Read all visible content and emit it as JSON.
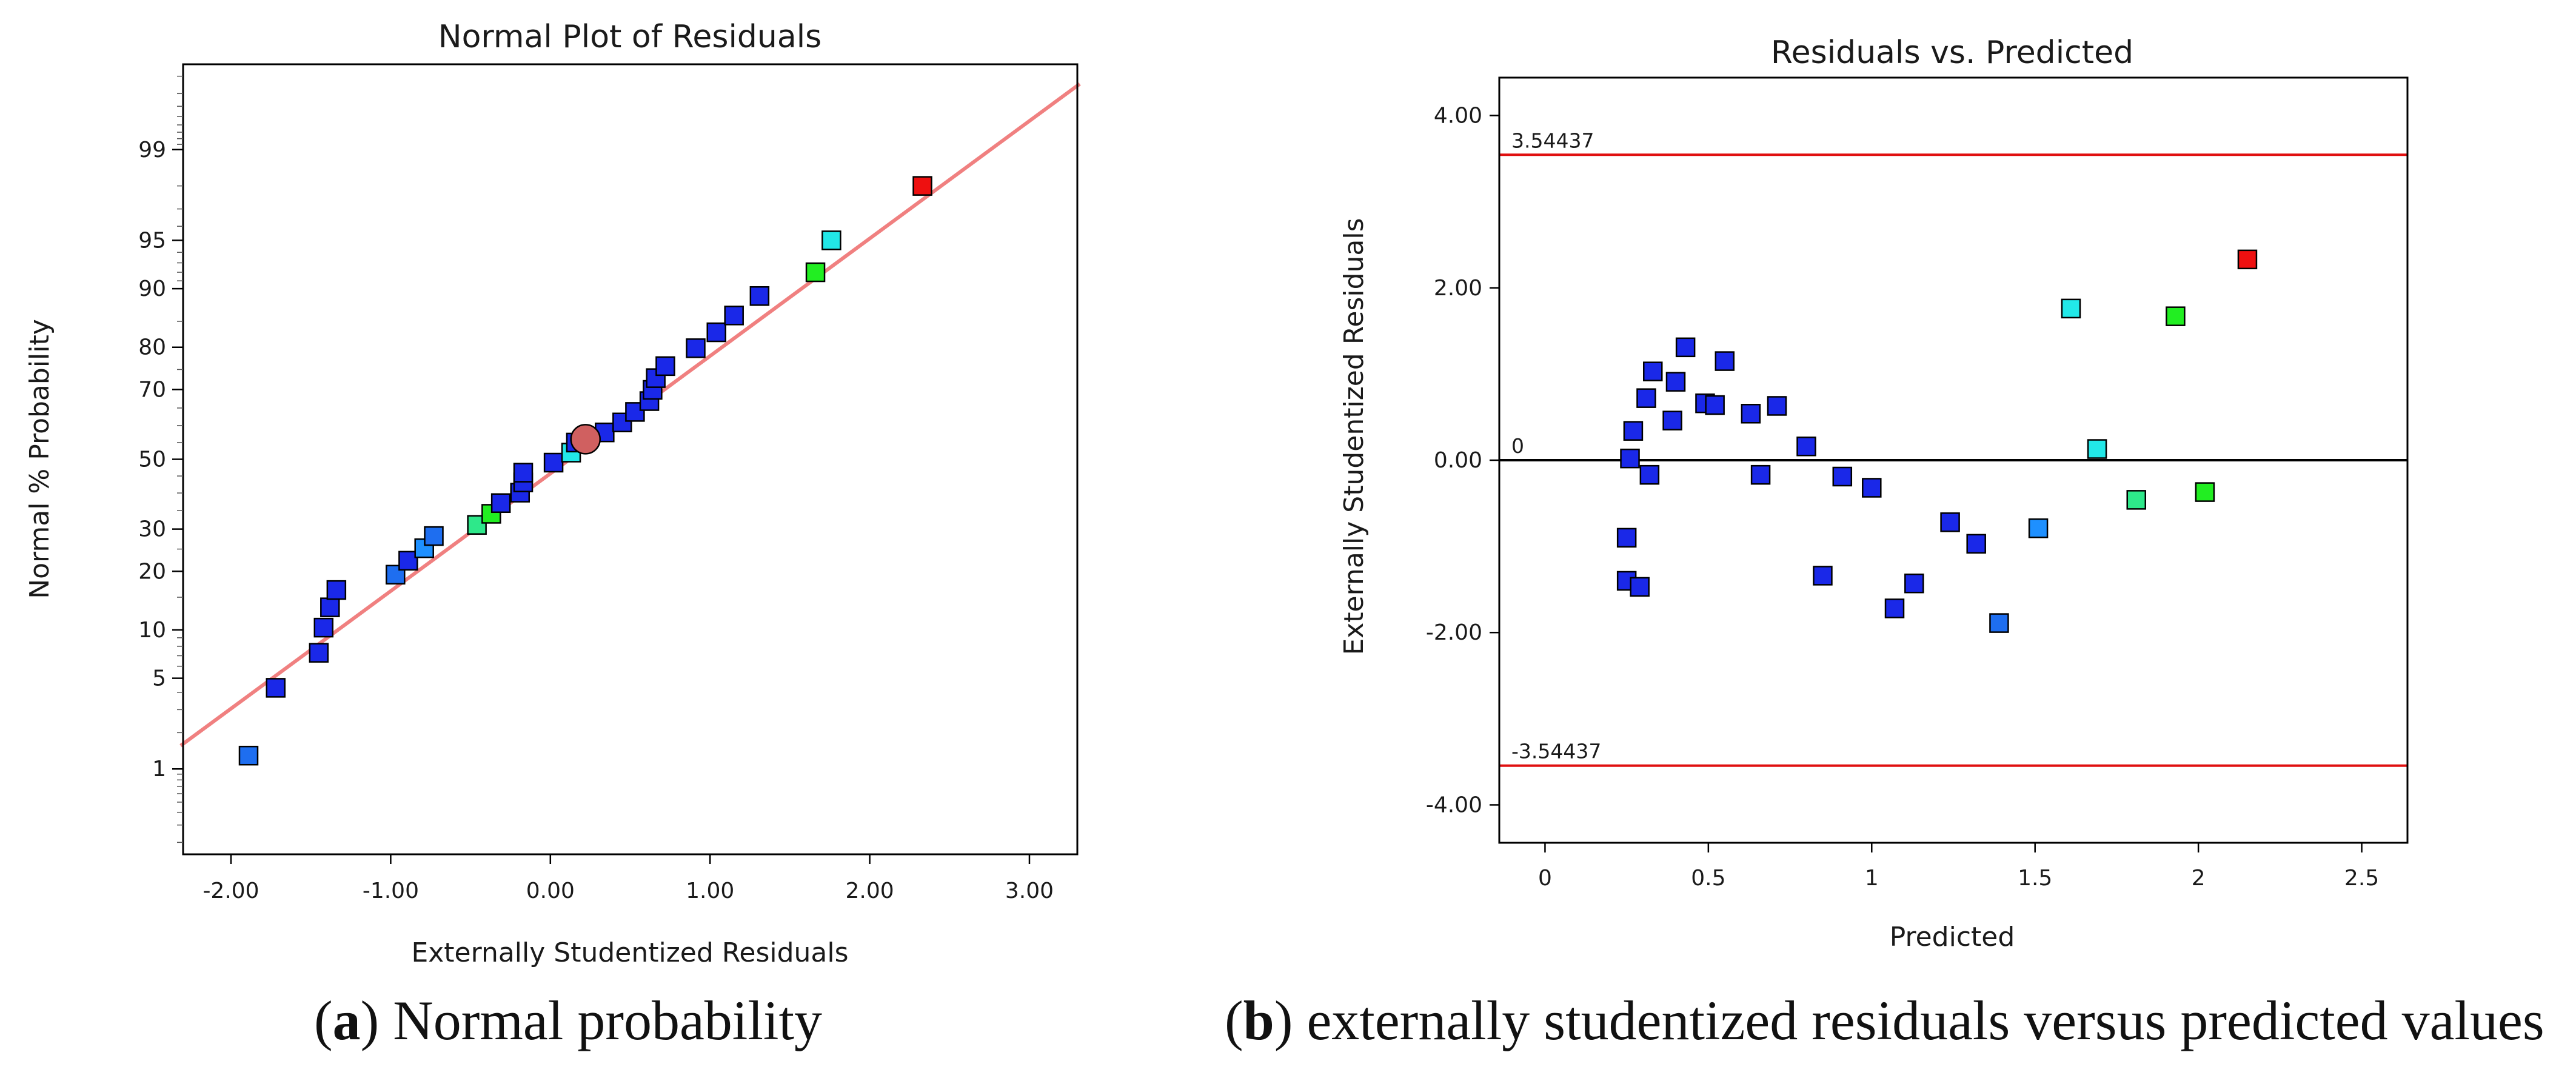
{
  "captions": {
    "a": {
      "letter": "a",
      "text": "Normal probability"
    },
    "b": {
      "letter": "b",
      "text": "externally studentized residuals versus predicted values"
    }
  },
  "colors": {
    "fit_line": "#f08080",
    "ref_line": "#e01010",
    "zero_line": "#000000",
    "frame": "#000000"
  },
  "chart_data": [
    {
      "type": "scatter",
      "title": "Normal Plot of Residuals",
      "xlabel": "Externally Studentized Residuals",
      "ylabel": "Normal % Probability",
      "xlim": [
        -2.3,
        3.3
      ],
      "xticks": [
        -2,
        -1,
        0,
        1,
        2,
        3
      ],
      "xtick_labels": [
        "-2.00",
        "-1.00",
        "0.00",
        "1.00",
        "2.00",
        "3.00"
      ],
      "ylim_probability": [
        0.15,
        99.85
      ],
      "yticks": [
        1,
        5,
        10,
        20,
        30,
        50,
        70,
        80,
        90,
        95,
        99
      ],
      "ytick_labels": [
        "1",
        "5",
        "10",
        "20",
        "30",
        "50",
        "70",
        "80",
        "90",
        "95",
        "99"
      ],
      "fit_line": {
        "x": [
          -2.3,
          3.3
        ],
        "y": [
          1.76,
          99.76
        ]
      },
      "highlight_point": {
        "x": 0.22,
        "y": 56,
        "color": "#d06060"
      },
      "points": [
        {
          "x": -1.89,
          "y": 1.3,
          "color": "#1e6ef0"
        },
        {
          "x": -1.72,
          "y": 4.3,
          "color": "#1a28e8"
        },
        {
          "x": -1.45,
          "y": 7.3,
          "color": "#1a28e8"
        },
        {
          "x": -1.42,
          "y": 10.3,
          "color": "#1a28e8"
        },
        {
          "x": -1.38,
          "y": 13.3,
          "color": "#1a28e8"
        },
        {
          "x": -1.34,
          "y": 16.3,
          "color": "#1a28e8"
        },
        {
          "x": -0.97,
          "y": 19.3,
          "color": "#1e6ef0"
        },
        {
          "x": -0.89,
          "y": 22.3,
          "color": "#1a28e8"
        },
        {
          "x": -0.79,
          "y": 25.2,
          "color": "#1e90ff"
        },
        {
          "x": -0.73,
          "y": 28.2,
          "color": "#1e6ef0"
        },
        {
          "x": -0.46,
          "y": 31.1,
          "color": "#2ee88a"
        },
        {
          "x": -0.37,
          "y": 34.1,
          "color": "#22ee22"
        },
        {
          "x": -0.31,
          "y": 37.1,
          "color": "#1a28e8"
        },
        {
          "x": -0.19,
          "y": 40.1,
          "color": "#1a28e8"
        },
        {
          "x": -0.17,
          "y": 43.1,
          "color": "#1a28e8"
        },
        {
          "x": -0.17,
          "y": 46.0,
          "color": "#1a28e8"
        },
        {
          "x": 0.02,
          "y": 49.0,
          "color": "#1a28e8"
        },
        {
          "x": 0.13,
          "y": 52.0,
          "color": "#22e8e8"
        },
        {
          "x": 0.16,
          "y": 55.0,
          "color": "#1a28e8"
        },
        {
          "x": 0.34,
          "y": 58.0,
          "color": "#1a28e8"
        },
        {
          "x": 0.45,
          "y": 60.9,
          "color": "#1a28e8"
        },
        {
          "x": 0.53,
          "y": 63.9,
          "color": "#1a28e8"
        },
        {
          "x": 0.62,
          "y": 66.9,
          "color": "#1a28e8"
        },
        {
          "x": 0.64,
          "y": 69.9,
          "color": "#1a28e8"
        },
        {
          "x": 0.66,
          "y": 72.9,
          "color": "#1a28e8"
        },
        {
          "x": 0.72,
          "y": 75.8,
          "color": "#1a28e8"
        },
        {
          "x": 0.91,
          "y": 79.8,
          "color": "#1a28e8"
        },
        {
          "x": 1.04,
          "y": 83.0,
          "color": "#1a28e8"
        },
        {
          "x": 1.15,
          "y": 86.0,
          "color": "#1a28e8"
        },
        {
          "x": 1.31,
          "y": 89.0,
          "color": "#1a28e8"
        },
        {
          "x": 1.66,
          "y": 92.0,
          "color": "#22ee22"
        },
        {
          "x": 1.76,
          "y": 95.0,
          "color": "#22e8e8"
        },
        {
          "x": 2.33,
          "y": 98.0,
          "color": "#ee1010"
        }
      ]
    },
    {
      "type": "scatter",
      "title": "Residuals vs. Predicted",
      "xlabel": "Predicted",
      "ylabel": "Externally Studentized Residuals",
      "xlim": [
        -0.14,
        2.64
      ],
      "xticks": [
        0,
        0.5,
        1,
        1.5,
        2,
        2.5
      ],
      "xtick_labels": [
        "0",
        "0.5",
        "1",
        "1.5",
        "2",
        "2.5"
      ],
      "ylim": [
        -4.44,
        4.44
      ],
      "yticks": [
        4,
        2,
        0,
        -2,
        -4
      ],
      "ytick_labels": [
        "4.00",
        "2.00",
        "0.00",
        "-2.00",
        "-4.00"
      ],
      "reference_lines": [
        {
          "y": 3.54437,
          "label": "3.54437",
          "color": "#e01010"
        },
        {
          "y": 0,
          "label": "0",
          "color": "#000000"
        },
        {
          "y": -3.54437,
          "label": "-3.54437",
          "color": "#e01010"
        }
      ],
      "points": [
        {
          "x": 0.25,
          "y": -0.9,
          "color": "#1a28e8"
        },
        {
          "x": 0.25,
          "y": -1.4,
          "color": "#1a28e8"
        },
        {
          "x": 0.26,
          "y": 0.02,
          "color": "#1a28e8"
        },
        {
          "x": 0.27,
          "y": 0.34,
          "color": "#1a28e8"
        },
        {
          "x": 0.29,
          "y": -1.47,
          "color": "#1a28e8"
        },
        {
          "x": 0.31,
          "y": 0.72,
          "color": "#1a28e8"
        },
        {
          "x": 0.32,
          "y": -0.17,
          "color": "#1a28e8"
        },
        {
          "x": 0.33,
          "y": 1.03,
          "color": "#1a28e8"
        },
        {
          "x": 0.39,
          "y": 0.46,
          "color": "#1a28e8"
        },
        {
          "x": 0.4,
          "y": 0.91,
          "color": "#1a28e8"
        },
        {
          "x": 0.43,
          "y": 1.31,
          "color": "#1a28e8"
        },
        {
          "x": 0.49,
          "y": 0.66,
          "color": "#1a28e8"
        },
        {
          "x": 0.52,
          "y": 0.64,
          "color": "#1a28e8"
        },
        {
          "x": 0.55,
          "y": 1.15,
          "color": "#1a28e8"
        },
        {
          "x": 0.63,
          "y": 0.54,
          "color": "#1a28e8"
        },
        {
          "x": 0.66,
          "y": -0.17,
          "color": "#1a28e8"
        },
        {
          "x": 0.71,
          "y": 0.63,
          "color": "#1a28e8"
        },
        {
          "x": 0.8,
          "y": 0.16,
          "color": "#1a28e8"
        },
        {
          "x": 0.85,
          "y": -1.34,
          "color": "#1a28e8"
        },
        {
          "x": 0.91,
          "y": -0.19,
          "color": "#1a28e8"
        },
        {
          "x": 1.0,
          "y": -0.32,
          "color": "#1a28e8"
        },
        {
          "x": 1.07,
          "y": -1.72,
          "color": "#1a28e8"
        },
        {
          "x": 1.13,
          "y": -1.43,
          "color": "#1a28e8"
        },
        {
          "x": 1.24,
          "y": -0.72,
          "color": "#1a28e8"
        },
        {
          "x": 1.32,
          "y": -0.97,
          "color": "#1a28e8"
        },
        {
          "x": 1.39,
          "y": -1.89,
          "color": "#1e6ef0"
        },
        {
          "x": 1.51,
          "y": -0.79,
          "color": "#1e90ff"
        },
        {
          "x": 1.61,
          "y": 1.76,
          "color": "#22e8e8"
        },
        {
          "x": 1.69,
          "y": 0.13,
          "color": "#22e8e8"
        },
        {
          "x": 1.81,
          "y": -0.46,
          "color": "#2ee88a"
        },
        {
          "x": 1.93,
          "y": 1.67,
          "color": "#22ee22"
        },
        {
          "x": 2.02,
          "y": -0.37,
          "color": "#22ee22"
        },
        {
          "x": 2.15,
          "y": 2.33,
          "color": "#ee1010"
        }
      ]
    }
  ]
}
